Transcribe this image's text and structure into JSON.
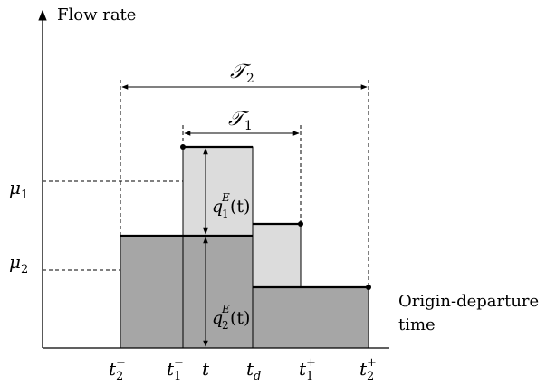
{
  "axes": {
    "y_label": "Flow rate",
    "x_label_line1": "Origin-departure",
    "x_label_line2": "time"
  },
  "intervals": {
    "T2_script": "𝒯",
    "T2_sub": "2",
    "T1_script": "𝒯",
    "T1_sub": "1"
  },
  "levels": {
    "mu1_base": "μ",
    "mu1_sub": "1",
    "mu2_base": "μ",
    "mu2_sub": "2"
  },
  "annotations": {
    "q1": {
      "base": "q",
      "sup": "E",
      "sub": "1",
      "arg": "(t)"
    },
    "q2": {
      "base": "q",
      "sup": "E",
      "sub": "2",
      "arg": "(t)"
    }
  },
  "ticks": [
    {
      "base": "t",
      "sub": "2",
      "sup": "−"
    },
    {
      "base": "t",
      "sub": "1",
      "sup": "−"
    },
    {
      "base": "t",
      "sub": "",
      "sup": ""
    },
    {
      "base": "t",
      "sub": "d",
      "sup": ""
    },
    {
      "base": "t",
      "sub": "1",
      "sup": "+"
    },
    {
      "base": "t",
      "sub": "2",
      "sup": "+"
    }
  ],
  "colors": {
    "dark_fill": "#a6a6a6",
    "light_fill": "#dcdcdc"
  }
}
